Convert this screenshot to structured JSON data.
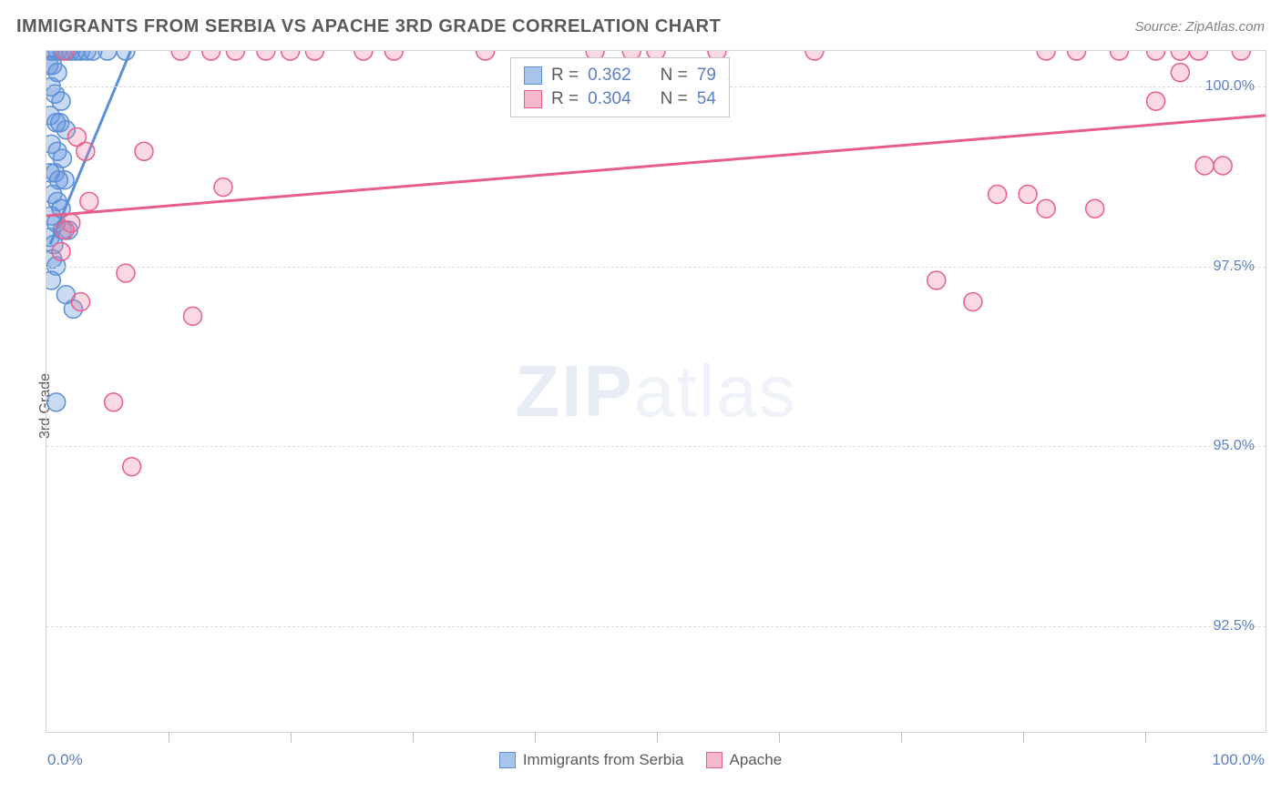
{
  "header": {
    "title": "IMMIGRANTS FROM SERBIA VS APACHE 3RD GRADE CORRELATION CHART",
    "source": "Source: ZipAtlas.com"
  },
  "chart": {
    "type": "scatter",
    "ylabel": "3rd Grade",
    "xlim": [
      0,
      100
    ],
    "ylim": [
      91.0,
      100.5
    ],
    "x_axis_min_label": "0.0%",
    "x_axis_max_label": "100.0%",
    "ytick_labels": [
      "92.5%",
      "95.0%",
      "97.5%",
      "100.0%"
    ],
    "ytick_values": [
      92.5,
      95.0,
      97.5,
      100.0
    ],
    "xtick_values": [
      0,
      10,
      20,
      30,
      40,
      50,
      60,
      70,
      80,
      90,
      100
    ],
    "background_color": "#ffffff",
    "grid_color": "#dcdcdc",
    "border_color": "#d4d4d4",
    "marker_radius": 10,
    "marker_stroke_width": 1.5,
    "series": [
      {
        "name": "Immigrants from Serbia",
        "color_fill": "rgba(99,148,222,0.35)",
        "color_stroke": "#5b8fd6",
        "swatch_fill": "#a9c4ea",
        "swatch_border": "#5b8fd6",
        "R_label": "R =",
        "R_value": "0.362",
        "N_label": "N =",
        "N_value": "79",
        "trendline": {
          "x1": 0.3,
          "y1": 97.8,
          "x2": 6.9,
          "y2": 100.5
        },
        "points": [
          [
            0.3,
            100.5
          ],
          [
            0.6,
            100.5
          ],
          [
            0.9,
            100.5
          ],
          [
            1.3,
            100.5
          ],
          [
            1.7,
            100.5
          ],
          [
            2.0,
            100.5
          ],
          [
            2.4,
            100.5
          ],
          [
            2.8,
            100.5
          ],
          [
            3.3,
            100.5
          ],
          [
            3.8,
            100.5
          ],
          [
            5.0,
            100.5
          ],
          [
            0.2,
            100.3
          ],
          [
            0.5,
            100.3
          ],
          [
            0.9,
            100.2
          ],
          [
            0.4,
            100.0
          ],
          [
            0.7,
            99.9
          ],
          [
            1.2,
            99.8
          ],
          [
            0.3,
            99.6
          ],
          [
            0.8,
            99.5
          ],
          [
            1.1,
            99.5
          ],
          [
            1.6,
            99.4
          ],
          [
            0.4,
            99.2
          ],
          [
            0.9,
            99.1
          ],
          [
            1.3,
            99.0
          ],
          [
            0.3,
            98.8
          ],
          [
            0.7,
            98.8
          ],
          [
            1.0,
            98.7
          ],
          [
            1.5,
            98.7
          ],
          [
            0.5,
            98.5
          ],
          [
            0.9,
            98.4
          ],
          [
            1.2,
            98.3
          ],
          [
            0.4,
            98.2
          ],
          [
            0.8,
            98.1
          ],
          [
            1.3,
            98.0
          ],
          [
            1.8,
            98.0
          ],
          [
            0.3,
            97.9
          ],
          [
            0.6,
            97.8
          ],
          [
            0.5,
            97.6
          ],
          [
            0.8,
            97.5
          ],
          [
            0.4,
            97.3
          ],
          [
            1.6,
            97.1
          ],
          [
            2.2,
            96.9
          ],
          [
            0.8,
            95.6
          ],
          [
            6.5,
            100.5
          ]
        ]
      },
      {
        "name": "Apache",
        "color_fill": "rgba(240,130,160,0.30)",
        "color_stroke": "#e85d8a",
        "swatch_fill": "#f4b8cb",
        "swatch_border": "#e85d8a",
        "R_label": "R =",
        "R_value": "0.304",
        "N_label": "N =",
        "N_value": "54",
        "trendline": {
          "x1": 0.0,
          "y1": 98.2,
          "x2": 100.0,
          "y2": 99.6
        },
        "points": [
          [
            1.5,
            100.5
          ],
          [
            11.0,
            100.5
          ],
          [
            13.5,
            100.5
          ],
          [
            15.5,
            100.5
          ],
          [
            18.0,
            100.5
          ],
          [
            20.0,
            100.5
          ],
          [
            22.0,
            100.5
          ],
          [
            26.0,
            100.5
          ],
          [
            28.5,
            100.5
          ],
          [
            36.0,
            100.5
          ],
          [
            45.0,
            100.5
          ],
          [
            48.0,
            100.5
          ],
          [
            50.0,
            100.5
          ],
          [
            55.0,
            100.5
          ],
          [
            63.0,
            100.5
          ],
          [
            82.0,
            100.5
          ],
          [
            84.5,
            100.5
          ],
          [
            88.0,
            100.5
          ],
          [
            91.0,
            100.5
          ],
          [
            93.0,
            100.5
          ],
          [
            94.5,
            100.5
          ],
          [
            98.0,
            100.5
          ],
          [
            8.0,
            99.1
          ],
          [
            2.5,
            99.3
          ],
          [
            3.2,
            99.1
          ],
          [
            14.5,
            98.6
          ],
          [
            3.5,
            98.4
          ],
          [
            2.0,
            98.1
          ],
          [
            1.5,
            98.0
          ],
          [
            1.2,
            97.7
          ],
          [
            6.5,
            97.4
          ],
          [
            2.8,
            97.0
          ],
          [
            12.0,
            96.8
          ],
          [
            5.5,
            95.6
          ],
          [
            7.0,
            94.7
          ],
          [
            78.0,
            98.5
          ],
          [
            80.5,
            98.5
          ],
          [
            95.0,
            98.9
          ],
          [
            82.0,
            98.3
          ],
          [
            86.0,
            98.3
          ],
          [
            73.0,
            97.3
          ],
          [
            76.0,
            97.0
          ],
          [
            91.0,
            99.8
          ],
          [
            93.0,
            100.2
          ],
          [
            96.5,
            98.9
          ]
        ]
      }
    ],
    "bottom_legend": [
      {
        "label": "Immigrants from Serbia",
        "fill": "#a9c4ea",
        "border": "#5b8fd6"
      },
      {
        "label": "Apache",
        "fill": "#f4b8cb",
        "border": "#e85d8a"
      }
    ]
  },
  "watermark": {
    "bold": "ZIP",
    "rest": "atlas"
  }
}
